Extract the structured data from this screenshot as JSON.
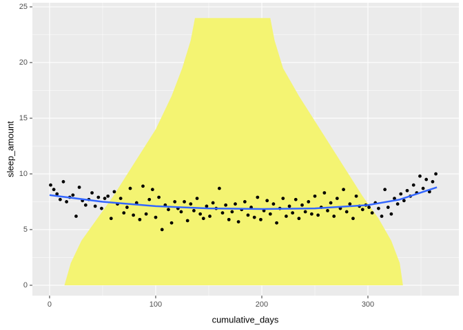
{
  "chart_data": {
    "type": "scatter",
    "x_label": "cumulative_days",
    "y_label": "sleep_amount",
    "xlim": [
      -16.2,
      385.7
    ],
    "ylim": [
      -0.93,
      25.37
    ],
    "xticks": [
      0,
      100,
      200,
      300
    ],
    "yticks": [
      0,
      5,
      10,
      15,
      20,
      25
    ],
    "grid": true,
    "area": {
      "color": "#F4F472",
      "x": [
        14,
        20,
        30,
        45,
        60,
        80,
        100,
        115,
        125,
        133,
        137,
        208,
        212,
        220,
        235,
        255,
        275,
        295,
        310,
        322,
        330,
        333
      ],
      "y": [
        0,
        2,
        4,
        6,
        8,
        11,
        14,
        17,
        19.5,
        22,
        24,
        24,
        22,
        19.5,
        17,
        14,
        11,
        8,
        6,
        4,
        2,
        0
      ]
    },
    "points": {
      "color": "#000000",
      "x": [
        1,
        4,
        7,
        10,
        13,
        16,
        19,
        22,
        25,
        28,
        31,
        34,
        37,
        40,
        43,
        46,
        49,
        52,
        55,
        58,
        61,
        64,
        67,
        70,
        73,
        76,
        79,
        82,
        85,
        88,
        91,
        94,
        97,
        100,
        103,
        106,
        109,
        112,
        115,
        118,
        121,
        124,
        127,
        130,
        133,
        136,
        139,
        142,
        145,
        148,
        151,
        154,
        157,
        160,
        163,
        166,
        169,
        172,
        175,
        178,
        181,
        184,
        187,
        190,
        193,
        196,
        199,
        202,
        205,
        208,
        211,
        214,
        217,
        220,
        223,
        226,
        229,
        232,
        235,
        238,
        241,
        244,
        247,
        250,
        253,
        256,
        259,
        262,
        265,
        268,
        271,
        274,
        277,
        280,
        283,
        286,
        289,
        292,
        295,
        298,
        301,
        304,
        307,
        310,
        313,
        316,
        319,
        322,
        325,
        328,
        331,
        334,
        337,
        340,
        343,
        346,
        349,
        352,
        355,
        358,
        361,
        364
      ],
      "y": [
        9.0,
        8.6,
        8.2,
        7.7,
        9.3,
        7.5,
        7.9,
        8.1,
        6.2,
        8.8,
        7.6,
        7.2,
        7.7,
        8.3,
        7.1,
        7.9,
        6.9,
        7.8,
        8.0,
        6.0,
        8.4,
        7.3,
        7.8,
        6.5,
        7.0,
        8.7,
        6.3,
        7.4,
        5.9,
        8.9,
        6.4,
        7.7,
        8.6,
        6.1,
        7.9,
        5.0,
        7.2,
        6.8,
        5.6,
        7.5,
        6.9,
        6.6,
        7.5,
        5.8,
        7.3,
        6.7,
        7.8,
        6.4,
        6.0,
        7.1,
        6.2,
        7.4,
        6.9,
        8.7,
        6.5,
        7.2,
        5.9,
        6.6,
        7.3,
        5.7,
        6.8,
        7.5,
        6.3,
        7.0,
        6.1,
        7.9,
        5.9,
        6.7,
        7.6,
        6.4,
        7.3,
        5.6,
        6.9,
        7.8,
        6.2,
        7.1,
        6.5,
        7.7,
        6.0,
        7.2,
        6.6,
        7.5,
        6.4,
        8.0,
        6.3,
        7.0,
        8.3,
        6.7,
        7.4,
        6.2,
        7.8,
        6.9,
        8.6,
        6.6,
        7.3,
        6.0,
        8.0,
        7.1,
        6.8,
        7.2,
        7.0,
        6.5,
        7.4,
        6.9,
        6.2,
        8.6,
        7.0,
        6.4,
        7.8,
        7.3,
        8.2,
        7.6,
        8.5,
        8.0,
        9.0,
        8.3,
        9.8,
        8.7,
        9.5,
        8.4,
        9.3,
        10.0
      ]
    },
    "smooth": {
      "color": "#3366FF",
      "x": [
        0,
        50,
        100,
        150,
        200,
        250,
        300,
        330,
        365
      ],
      "y": [
        8.1,
        7.5,
        7.1,
        6.9,
        6.85,
        6.9,
        7.2,
        7.7,
        8.8
      ]
    }
  }
}
